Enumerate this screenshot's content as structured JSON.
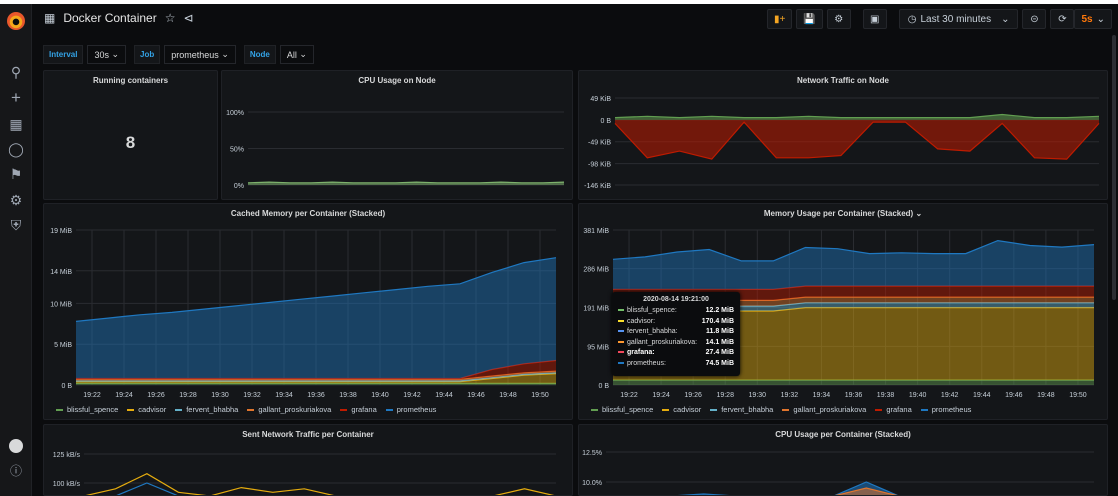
{
  "header": {
    "title": "Docker Container",
    "time_range": "Last 30 minutes",
    "refresh": "5s"
  },
  "variables": [
    {
      "label": "Interval",
      "value": "30s"
    },
    {
      "label": "Job",
      "value": "prometheus"
    },
    {
      "label": "Node",
      "value": "All"
    }
  ],
  "colors": {
    "accent": "#33a2e5",
    "refresh": "#ff780a",
    "blissful_spence": "#73bf69",
    "cadvisor": "#fade2a",
    "fervent_bhabha": "#5794f2",
    "gallant_proskuriakova": "#ff9830",
    "grafana": "#f2495c",
    "prometheus": "#1f78c1"
  },
  "series_colors": {
    "blissful_spence": "#629e51",
    "cadvisor": "#e5ac0e",
    "fervent_bhabha": "#64b0c8",
    "gallant_proskuriakova": "#e0752d",
    "grafana": "#bf1b00",
    "prometheus": "#1f78c1",
    "transmit": "#629e51",
    "receive": "#bf1b00",
    "cpu": "#7eb26d"
  },
  "panels": {
    "running": {
      "title": "Running containers",
      "value": "8"
    },
    "cpu_node": {
      "title": "CPU Usage on Node"
    },
    "network_node": {
      "title": "Network Traffic on Node"
    },
    "cached": {
      "title": "Cached Memory per Container (Stacked)"
    },
    "memory": {
      "title": "Memory Usage per Container (Stacked)"
    },
    "sent": {
      "title": "Sent Network Traffic per Container"
    },
    "cpu_container": {
      "title": "CPU Usage per Container (Stacked)"
    }
  },
  "legend": [
    "blissful_spence",
    "cadvisor",
    "fervent_bhabha",
    "gallant_proskuriakova",
    "grafana",
    "prometheus"
  ],
  "tooltip": {
    "time": "2020-08-14 19:21:00",
    "rows": [
      {
        "name": "blissful_spence:",
        "value": "12.2 MiB"
      },
      {
        "name": "cadvisor:",
        "value": "170.4 MiB"
      },
      {
        "name": "fervent_bhabha:",
        "value": "11.8 MiB"
      },
      {
        "name": "gallant_proskuriakova:",
        "value": "14.1 MiB"
      },
      {
        "name": "grafana:",
        "value": "27.4 MiB",
        "bold": true
      },
      {
        "name": "prometheus:",
        "value": "74.5 MiB"
      }
    ]
  },
  "chart_data": [
    {
      "id": "cpu_node",
      "type": "area",
      "x": [
        "19:21",
        "19:23",
        "19:25",
        "19:27",
        "19:29",
        "19:31",
        "19:33",
        "19:35",
        "19:37",
        "19:39",
        "19:41",
        "19:43",
        "19:45",
        "19:47",
        "19:49",
        "19:51"
      ],
      "ylim": [
        0,
        100
      ],
      "yticks": [
        0,
        50,
        100
      ],
      "ytick_labels": [
        "0%",
        "50%",
        "100%"
      ],
      "xticks": [],
      "grid": true,
      "stacked": false,
      "series": [
        {
          "key": "cpu",
          "values": [
            3,
            4,
            3,
            3,
            4,
            3,
            3,
            3,
            4,
            3,
            3,
            3,
            4,
            3,
            3,
            4
          ]
        }
      ]
    },
    {
      "id": "network_node",
      "type": "area",
      "x": [
        "19:21",
        "19:23",
        "19:25",
        "19:27",
        "19:29",
        "19:31",
        "19:33",
        "19:35",
        "19:37",
        "19:39",
        "19:41",
        "19:43",
        "19:45",
        "19:47",
        "19:49",
        "19:51"
      ],
      "ylim": [
        -146,
        49
      ],
      "yticks": [
        49,
        0,
        -49,
        -98,
        -146
      ],
      "ytick_labels": [
        "49 KiB",
        "0 B",
        "-49 KiB",
        "-98 KiB",
        "-146 KiB"
      ],
      "xticks": [],
      "grid": true,
      "stacked": false,
      "series": [
        {
          "key": "transmit",
          "values": [
            5,
            8,
            5,
            8,
            5,
            5,
            8,
            5,
            5,
            5,
            5,
            5,
            12,
            5,
            5,
            8
          ]
        },
        {
          "key": "receive",
          "values": [
            -8,
            -85,
            -70,
            -88,
            -5,
            -85,
            -85,
            -80,
            -5,
            -5,
            -65,
            -70,
            -8,
            -85,
            -88,
            -8
          ]
        }
      ]
    },
    {
      "id": "cached",
      "type": "area",
      "x": [
        "19:21",
        "19:23",
        "19:25",
        "19:27",
        "19:29",
        "19:31",
        "19:33",
        "19:35",
        "19:37",
        "19:39",
        "19:41",
        "19:43",
        "19:45",
        "19:47",
        "19:49",
        "19:51"
      ],
      "ylim": [
        0,
        19
      ],
      "yticks": [
        0,
        5,
        10,
        14,
        19
      ],
      "ytick_labels": [
        "0 B",
        "5 MiB",
        "10 MiB",
        "14 MiB",
        "19 MiB"
      ],
      "xticks": [
        "19:22",
        "19:24",
        "19:26",
        "19:28",
        "19:30",
        "19:32",
        "19:34",
        "19:36",
        "19:38",
        "19:40",
        "19:42",
        "19:44",
        "19:46",
        "19:48",
        "19:50"
      ],
      "grid": true,
      "stacked": true,
      "series": [
        {
          "key": "blissful_spence",
          "values": [
            0.2,
            0.2,
            0.2,
            0.2,
            0.2,
            0.2,
            0.2,
            0.2,
            0.2,
            0.2,
            0.2,
            0.2,
            0.2,
            0.2,
            0.2,
            0.2
          ]
        },
        {
          "key": "cadvisor",
          "values": [
            0.2,
            0.2,
            0.2,
            0.2,
            0.2,
            0.2,
            0.2,
            0.2,
            0.2,
            0.2,
            0.2,
            0.2,
            0.2,
            0.6,
            1.0,
            1.2
          ]
        },
        {
          "key": "fervent_bhabha",
          "values": [
            0.1,
            0.1,
            0.1,
            0.1,
            0.1,
            0.1,
            0.1,
            0.1,
            0.1,
            0.1,
            0.1,
            0.1,
            0.1,
            0.1,
            0.1,
            0.1
          ]
        },
        {
          "key": "gallant_proskuriakova",
          "values": [
            0.2,
            0.2,
            0.2,
            0.2,
            0.2,
            0.2,
            0.2,
            0.2,
            0.2,
            0.2,
            0.2,
            0.2,
            0.2,
            0.2,
            0.2,
            0.2
          ]
        },
        {
          "key": "grafana",
          "values": [
            0.1,
            0.1,
            0.1,
            0.1,
            0.1,
            0.1,
            0.1,
            0.1,
            0.1,
            0.1,
            0.1,
            0.1,
            0.1,
            0.8,
            1.1,
            1.3
          ]
        },
        {
          "key": "prometheus",
          "values": [
            7.0,
            7.4,
            7.8,
            8.1,
            8.5,
            8.9,
            9.3,
            9.7,
            10.1,
            10.5,
            10.9,
            11.3,
            11.6,
            11.9,
            12.4,
            12.6
          ]
        }
      ]
    },
    {
      "id": "memory",
      "type": "area",
      "x": [
        "19:21",
        "19:23",
        "19:25",
        "19:27",
        "19:29",
        "19:31",
        "19:33",
        "19:35",
        "19:37",
        "19:39",
        "19:41",
        "19:43",
        "19:45",
        "19:47",
        "19:49",
        "19:51"
      ],
      "ylim": [
        0,
        381
      ],
      "yticks": [
        0,
        95,
        191,
        286,
        381
      ],
      "ytick_labels": [
        "0 B",
        "95 MiB",
        "191 MiB",
        "286 MiB",
        "381 MiB"
      ],
      "xticks": [
        "19:22",
        "19:24",
        "19:26",
        "19:28",
        "19:30",
        "19:32",
        "19:34",
        "19:36",
        "19:38",
        "19:40",
        "19:42",
        "19:44",
        "19:46",
        "19:48",
        "19:50"
      ],
      "grid": true,
      "stacked": true,
      "series": [
        {
          "key": "blissful_spence",
          "values": [
            12,
            12,
            12,
            12,
            12,
            12,
            12,
            12,
            12,
            12,
            12,
            12,
            12,
            12,
            12,
            12
          ]
        },
        {
          "key": "cadvisor",
          "values": [
            170,
            170,
            170,
            170,
            170,
            170,
            178,
            178,
            178,
            178,
            178,
            178,
            178,
            178,
            178,
            178
          ]
        },
        {
          "key": "fervent_bhabha",
          "values": [
            12,
            12,
            12,
            12,
            12,
            12,
            12,
            12,
            12,
            12,
            12,
            12,
            12,
            12,
            12,
            12
          ]
        },
        {
          "key": "gallant_proskuriakova",
          "values": [
            14,
            14,
            14,
            14,
            14,
            14,
            14,
            14,
            14,
            14,
            14,
            14,
            14,
            14,
            14,
            14
          ]
        },
        {
          "key": "grafana",
          "values": [
            27,
            27,
            27,
            27,
            27,
            27,
            27,
            27,
            27,
            27,
            27,
            27,
            27,
            27,
            27,
            27
          ]
        },
        {
          "key": "prometheus",
          "values": [
            74,
            80,
            92,
            98,
            70,
            70,
            95,
            92,
            80,
            82,
            80,
            80,
            112,
            100,
            96,
            102
          ]
        }
      ]
    },
    {
      "id": "sent",
      "type": "line",
      "x": [
        "19:21",
        "19:23",
        "19:25",
        "19:27",
        "19:29",
        "19:31",
        "19:33",
        "19:35",
        "19:37",
        "19:39",
        "19:41",
        "19:43",
        "19:45",
        "19:47",
        "19:49",
        "19:51"
      ],
      "ylim": [
        0,
        125
      ],
      "yticks": [
        100,
        125
      ],
      "ytick_labels": [
        "100 kB/s",
        "125 kB/s"
      ],
      "xticks": [],
      "grid": true,
      "stacked": false,
      "series": [
        {
          "key": "cadvisor",
          "values": [
            70,
            95,
            108,
            92,
            70,
            96,
            92,
            95,
            70,
            70,
            70,
            70,
            70,
            70,
            95,
            70
          ]
        },
        {
          "key": "prometheus",
          "values": [
            60,
            80,
            100,
            80,
            60,
            85,
            80,
            80,
            60,
            60,
            60,
            60,
            60,
            60,
            85,
            60
          ]
        }
      ]
    },
    {
      "id": "cpu_container",
      "type": "area",
      "x": [
        "19:21",
        "19:23",
        "19:25",
        "19:27",
        "19:29",
        "19:31",
        "19:33",
        "19:35",
        "19:37",
        "19:39",
        "19:41",
        "19:43",
        "19:45",
        "19:47",
        "19:49",
        "19:51"
      ],
      "ylim": [
        0,
        12.5
      ],
      "yticks": [
        10,
        12.5
      ],
      "ytick_labels": [
        "10.0%",
        "12.5%"
      ],
      "xticks": [],
      "grid": true,
      "stacked": false,
      "series": [
        {
          "key": "prometheus",
          "values": [
            5,
            5,
            6,
            9,
            5,
            5,
            5,
            6,
            10,
            5,
            5,
            5,
            5,
            5,
            5,
            5
          ]
        },
        {
          "key": "gallant_proskuriakova",
          "values": [
            4,
            4,
            5,
            8,
            4,
            4,
            4,
            5,
            9.5,
            4,
            4,
            4,
            4,
            4,
            4,
            4
          ]
        }
      ]
    }
  ]
}
